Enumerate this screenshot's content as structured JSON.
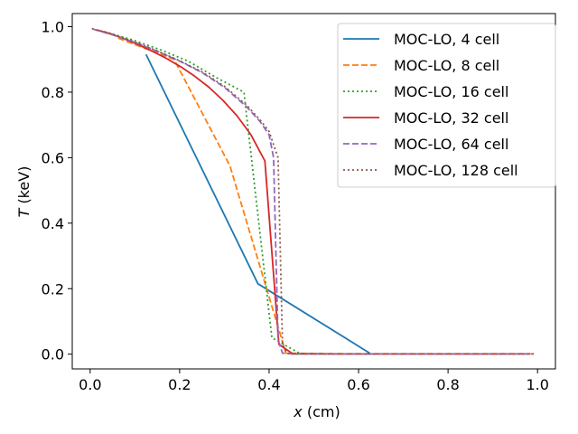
{
  "chart_data": {
    "type": "line",
    "title": "",
    "xlabel_var": "x",
    "xlabel_unit": " (cm)",
    "ylabel_var": "T",
    "ylabel_unit": " (keV)",
    "xlim": [
      -0.04,
      1.04
    ],
    "ylim": [
      -0.045,
      1.04
    ],
    "xticks": [
      0.0,
      0.2,
      0.4,
      0.6,
      0.8,
      1.0
    ],
    "xtick_labels": [
      "0.0",
      "0.2",
      "0.4",
      "0.6",
      "0.8",
      "1.0"
    ],
    "yticks": [
      0.0,
      0.2,
      0.4,
      0.6,
      0.8,
      1.0
    ],
    "ytick_labels": [
      "0.0",
      "0.2",
      "0.4",
      "0.6",
      "0.8",
      "1.0"
    ],
    "grid": false,
    "legend_position": "top-right",
    "series": [
      {
        "name": "MOC-LO, 4 cell",
        "color": "#1f77b4",
        "dash": "solid",
        "x": [
          0.125,
          0.375,
          0.625
        ],
        "y": [
          0.915,
          0.215,
          0.003
        ]
      },
      {
        "name": "MOC-LO, 8 cell",
        "color": "#ff7f0e",
        "dash": "dashed",
        "x": [
          0.0625,
          0.1875,
          0.3125,
          0.4375,
          0.5625,
          0.6875,
          0.8125,
          0.9375
        ],
        "y": [
          0.965,
          0.9,
          0.575,
          0.003,
          0.001,
          0.001,
          0.001,
          0.001
        ]
      },
      {
        "name": "MOC-LO, 16 cell",
        "color": "#2ca02c",
        "dash": "dotted",
        "x": [
          0.03125,
          0.09375,
          0.15625,
          0.21875,
          0.28125,
          0.34375,
          0.40625,
          0.46875,
          0.53125,
          0.59375,
          0.65625,
          0.71875,
          0.78125,
          0.84375,
          0.90625,
          0.96875
        ],
        "y": [
          0.985,
          0.96,
          0.93,
          0.895,
          0.845,
          0.8,
          0.05,
          0.002,
          0.001,
          0.001,
          0.001,
          0.001,
          0.001,
          0.001,
          0.001,
          0.001
        ]
      },
      {
        "name": "MOC-LO, 32 cell",
        "color": "#d62728",
        "dash": "solid",
        "x": [
          0.015625,
          0.046875,
          0.078125,
          0.109375,
          0.140625,
          0.171875,
          0.203125,
          0.234375,
          0.265625,
          0.296875,
          0.328125,
          0.359375,
          0.390625,
          0.421875,
          0.453125,
          0.5,
          0.6,
          0.7,
          0.8,
          0.9,
          0.984375
        ],
        "y": [
          0.99,
          0.978,
          0.962,
          0.944,
          0.924,
          0.902,
          0.877,
          0.848,
          0.815,
          0.775,
          0.728,
          0.67,
          0.59,
          0.03,
          0.001,
          0.001,
          0.001,
          0.001,
          0.001,
          0.001,
          0.001
        ]
      },
      {
        "name": "MOC-LO, 64 cell",
        "color": "#9467bd",
        "dash": "dashed",
        "x": [
          0.0078,
          0.05,
          0.1,
          0.15,
          0.2,
          0.25,
          0.3,
          0.35,
          0.38,
          0.4,
          0.41,
          0.42,
          0.43,
          0.45,
          0.5,
          0.6,
          0.7,
          0.8,
          0.9,
          0.992
        ],
        "y": [
          0.992,
          0.975,
          0.952,
          0.925,
          0.895,
          0.86,
          0.815,
          0.755,
          0.71,
          0.67,
          0.6,
          0.045,
          0.003,
          0.001,
          0.001,
          0.001,
          0.001,
          0.001,
          0.001,
          0.001
        ]
      },
      {
        "name": "MOC-LO, 128 cell",
        "color": "#8c564b",
        "dash": "dotted",
        "x": [
          0.0039,
          0.05,
          0.1,
          0.15,
          0.2,
          0.25,
          0.3,
          0.35,
          0.38,
          0.4,
          0.42,
          0.43,
          0.44,
          0.45,
          0.5,
          0.6,
          0.7,
          0.8,
          0.9,
          0.996
        ],
        "y": [
          0.994,
          0.976,
          0.953,
          0.926,
          0.896,
          0.862,
          0.818,
          0.76,
          0.715,
          0.68,
          0.6,
          0.03,
          0.003,
          0.001,
          0.001,
          0.001,
          0.001,
          0.001,
          0.001,
          0.001
        ]
      }
    ]
  }
}
